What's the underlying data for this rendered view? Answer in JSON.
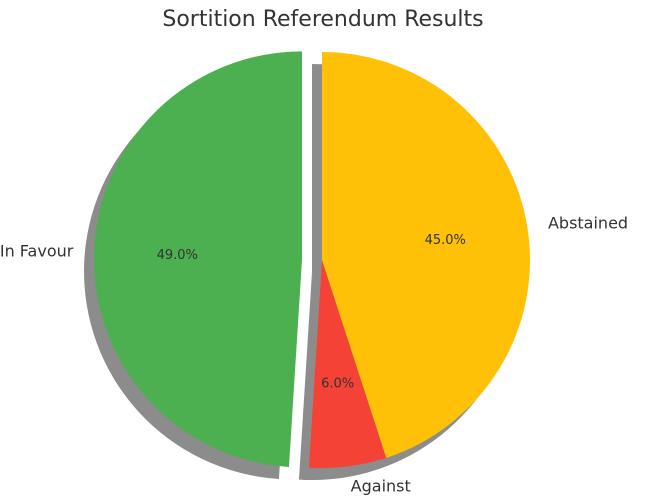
{
  "chart_data": {
    "type": "pie",
    "title": "Sortition Referendum Results",
    "slices": [
      {
        "label": "In Favour",
        "value": 49.0,
        "pct_label": "49.0%",
        "color": "#4caf50",
        "explode": true
      },
      {
        "label": "Against",
        "value": 6.0,
        "pct_label": "6.0%",
        "color": "#f44336",
        "explode": false
      },
      {
        "label": "Abstained",
        "value": 45.0,
        "pct_label": "45.0%",
        "color": "#ffc107",
        "explode": false
      }
    ],
    "start_angle_deg": 90,
    "direction": "counterclockwise",
    "shadow": true,
    "legend": "none"
  }
}
